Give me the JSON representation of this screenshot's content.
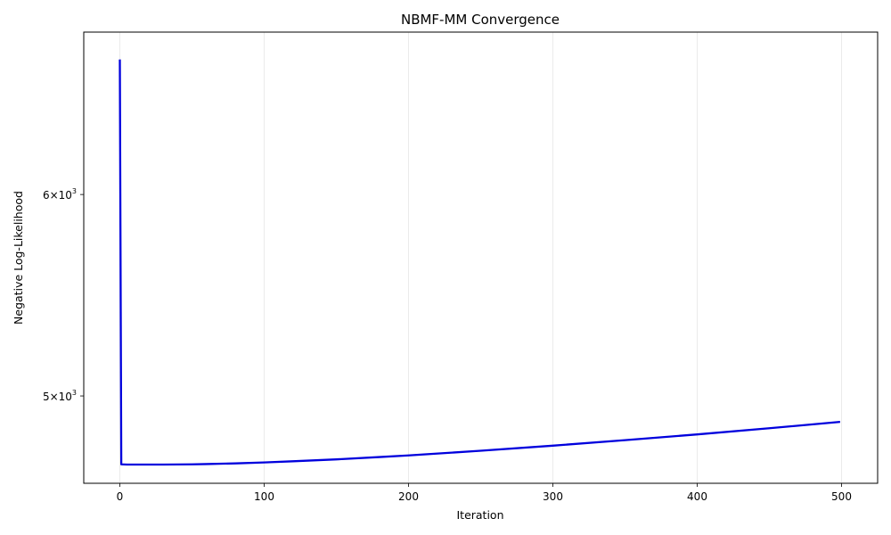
{
  "chart_data": {
    "type": "line",
    "title": "NBMF-MM Convergence",
    "xlabel": "Iteration",
    "ylabel": "Negative Log-Likelihood",
    "xlim": [
      -25,
      525
    ],
    "ylim": [
      4620,
      6950
    ],
    "yscale": "log",
    "grid": "x-only",
    "x_ticks": [
      {
        "value": 0,
        "label": "0"
      },
      {
        "value": 100,
        "label": "100"
      },
      {
        "value": 200,
        "label": "200"
      },
      {
        "value": 300,
        "label": "300"
      },
      {
        "value": 400,
        "label": "400"
      },
      {
        "value": 500,
        "label": "500"
      }
    ],
    "y_ticks": [
      {
        "value": 5000,
        "mantissa": "5",
        "base": "10",
        "exp": "3"
      },
      {
        "value": 6000,
        "mantissa": "6",
        "base": "10",
        "exp": "3"
      }
    ],
    "series": [
      {
        "color": "#0000dd",
        "x": [
          0,
          1,
          5,
          10,
          20,
          30,
          40,
          50,
          60,
          80,
          100,
          120,
          150,
          180,
          200,
          250,
          300,
          350,
          400,
          450,
          499
        ],
        "y": [
          6780,
          4700,
          4699,
          4699,
          4699,
          4699,
          4699.5,
          4700,
          4701,
          4704,
          4708,
          4713,
          4721,
          4731,
          4738,
          4758,
          4780,
          4804,
          4829,
          4856,
          4884
        ]
      }
    ]
  }
}
